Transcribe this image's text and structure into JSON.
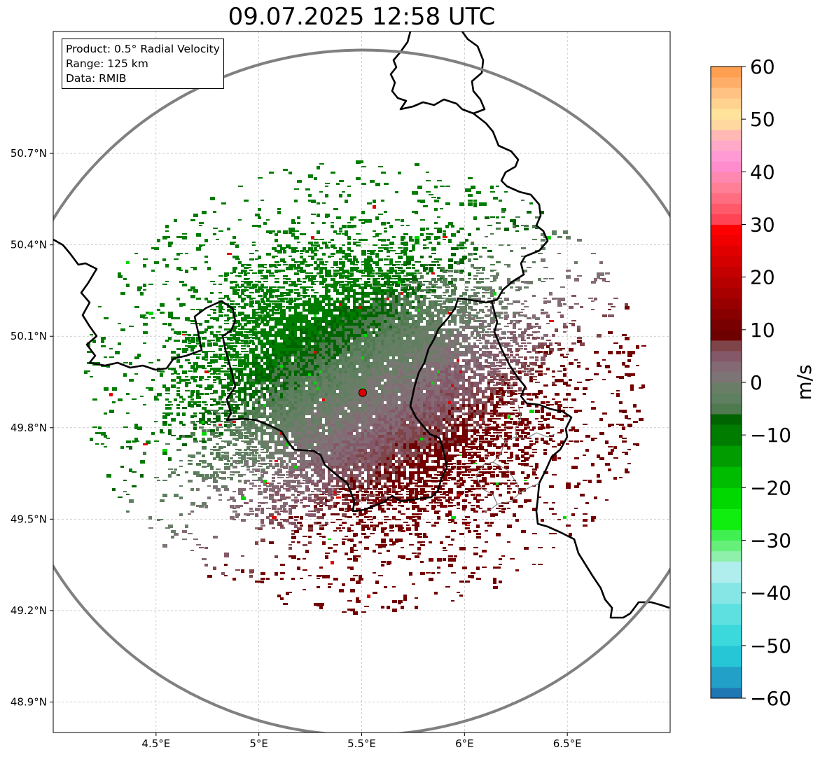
{
  "chart_data": {
    "type": "heatmap",
    "title": "09.07.2025 12:58 UTC",
    "product_label": "Product: 0.5° Radial Velocity",
    "range_label": "Range: 125 km",
    "data_label": "Data: RMIB",
    "radar_site": {
      "lon": 5.505,
      "lat": 49.915
    },
    "range_km": 125,
    "lon_range": [
      4.0,
      7.0
    ],
    "lat_range": [
      48.8,
      51.1
    ],
    "x_ticks": [
      {
        "value": 4.5,
        "label": "4.5°E"
      },
      {
        "value": 5.0,
        "label": "5°E"
      },
      {
        "value": 5.5,
        "label": "5.5°E"
      },
      {
        "value": 6.0,
        "label": "6°E"
      },
      {
        "value": 6.5,
        "label": "6.5°E"
      }
    ],
    "y_ticks": [
      {
        "value": 50.7,
        "label": "50.7°N"
      },
      {
        "value": 50.4,
        "label": "50.4°N"
      },
      {
        "value": 50.1,
        "label": "50.1°N"
      },
      {
        "value": 49.8,
        "label": "49.8°N"
      },
      {
        "value": 49.5,
        "label": "49.5°N"
      },
      {
        "value": 49.2,
        "label": "49.2°N"
      },
      {
        "value": 48.9,
        "label": "48.9°N"
      }
    ],
    "colorbar": {
      "label": "m/s",
      "min": -60,
      "max": 60,
      "ticks": [
        {
          "value": 60,
          "label": "60"
        },
        {
          "value": 50,
          "label": "50"
        },
        {
          "value": 40,
          "label": "40"
        },
        {
          "value": 30,
          "label": "30"
        },
        {
          "value": 20,
          "label": "20"
        },
        {
          "value": 10,
          "label": "10"
        },
        {
          "value": 0,
          "label": "0"
        },
        {
          "value": -10,
          "label": "−10"
        },
        {
          "value": -20,
          "label": "−20"
        },
        {
          "value": -30,
          "label": "−30"
        },
        {
          "value": -40,
          "label": "−40"
        },
        {
          "value": -50,
          "label": "−50"
        },
        {
          "value": -60,
          "label": "−60"
        }
      ],
      "bands": [
        {
          "from": -60,
          "to": -58,
          "color": "#1f77b4"
        },
        {
          "from": -58,
          "to": -54,
          "color": "#22a0c8"
        },
        {
          "from": -54,
          "to": -50,
          "color": "#27c6d6"
        },
        {
          "from": -50,
          "to": -46,
          "color": "#3bd8dc"
        },
        {
          "from": -46,
          "to": -42,
          "color": "#5fe0e0"
        },
        {
          "from": -42,
          "to": -38,
          "color": "#86e6e6"
        },
        {
          "from": -38,
          "to": -34,
          "color": "#b0eeee"
        },
        {
          "from": -34,
          "to": -32,
          "color": "#8ef0aa"
        },
        {
          "from": -32,
          "to": -30,
          "color": "#66f07a"
        },
        {
          "from": -30,
          "to": -28,
          "color": "#40f050"
        },
        {
          "from": -28,
          "to": -24,
          "color": "#10ee10"
        },
        {
          "from": -24,
          "to": -20,
          "color": "#00d800"
        },
        {
          "from": -20,
          "to": -16,
          "color": "#00bc00"
        },
        {
          "from": -16,
          "to": -12,
          "color": "#009c00"
        },
        {
          "from": -12,
          "to": -8,
          "color": "#007c00"
        },
        {
          "from": -8,
          "to": -6,
          "color": "#006400"
        },
        {
          "from": -6,
          "to": -4,
          "color": "#4f7a4f"
        },
        {
          "from": -4,
          "to": -2,
          "color": "#5f8060"
        },
        {
          "from": -2,
          "to": 0,
          "color": "#6a7d67"
        },
        {
          "from": 0,
          "to": 2,
          "color": "#7d7575"
        },
        {
          "from": 2,
          "to": 4,
          "color": "#846a74"
        },
        {
          "from": 4,
          "to": 6,
          "color": "#845868"
        },
        {
          "from": 6,
          "to": 8,
          "color": "#7f4448"
        },
        {
          "from": 8,
          "to": 10,
          "color": "#6e0000"
        },
        {
          "from": 10,
          "to": 12,
          "color": "#780000"
        },
        {
          "from": 12,
          "to": 14,
          "color": "#880000"
        },
        {
          "from": 14,
          "to": 16,
          "color": "#980000"
        },
        {
          "from": 16,
          "to": 18,
          "color": "#a80000"
        },
        {
          "from": 18,
          "to": 20,
          "color": "#b60000"
        },
        {
          "from": 20,
          "to": 22,
          "color": "#c40000"
        },
        {
          "from": 22,
          "to": 24,
          "color": "#d40000"
        },
        {
          "from": 24,
          "to": 26,
          "color": "#e00000"
        },
        {
          "from": 26,
          "to": 28,
          "color": "#f00000"
        },
        {
          "from": 28,
          "to": 30,
          "color": "#ff0000"
        },
        {
          "from": 30,
          "to": 32,
          "color": "#ff4455"
        },
        {
          "from": 32,
          "to": 34,
          "color": "#ff5a6a"
        },
        {
          "from": 34,
          "to": 36,
          "color": "#ff6e80"
        },
        {
          "from": 36,
          "to": 38,
          "color": "#ff8096"
        },
        {
          "from": 38,
          "to": 40,
          "color": "#ff88b0"
        },
        {
          "from": 40,
          "to": 42,
          "color": "#ff8ccc"
        },
        {
          "from": 42,
          "to": 44,
          "color": "#ff9ad4"
        },
        {
          "from": 44,
          "to": 46,
          "color": "#ffa8c8"
        },
        {
          "from": 46,
          "to": 48,
          "color": "#ffb8b4"
        },
        {
          "from": 48,
          "to": 50,
          "color": "#ffd8a0"
        },
        {
          "from": 50,
          "to": 52,
          "color": "#ffe39a"
        },
        {
          "from": 52,
          "to": 54,
          "color": "#ffd290"
        },
        {
          "from": 54,
          "to": 56,
          "color": "#ffc282"
        },
        {
          "from": 56,
          "to": 58,
          "color": "#ffae6a"
        },
        {
          "from": 58,
          "to": 60,
          "color": "#ffa050"
        }
      ]
    },
    "velocity_pattern": {
      "description": "inbound (green) to the north-west, outbound (maroon/red) to the south-east of the radar",
      "inbound_peak": -10,
      "outbound_peak": 10
    }
  },
  "colors": {
    "range_ring": "#808080",
    "border_main": "#000000",
    "border_sub": "#808080",
    "radar_marker": "#e00000",
    "grid": "#b0b0b0"
  }
}
